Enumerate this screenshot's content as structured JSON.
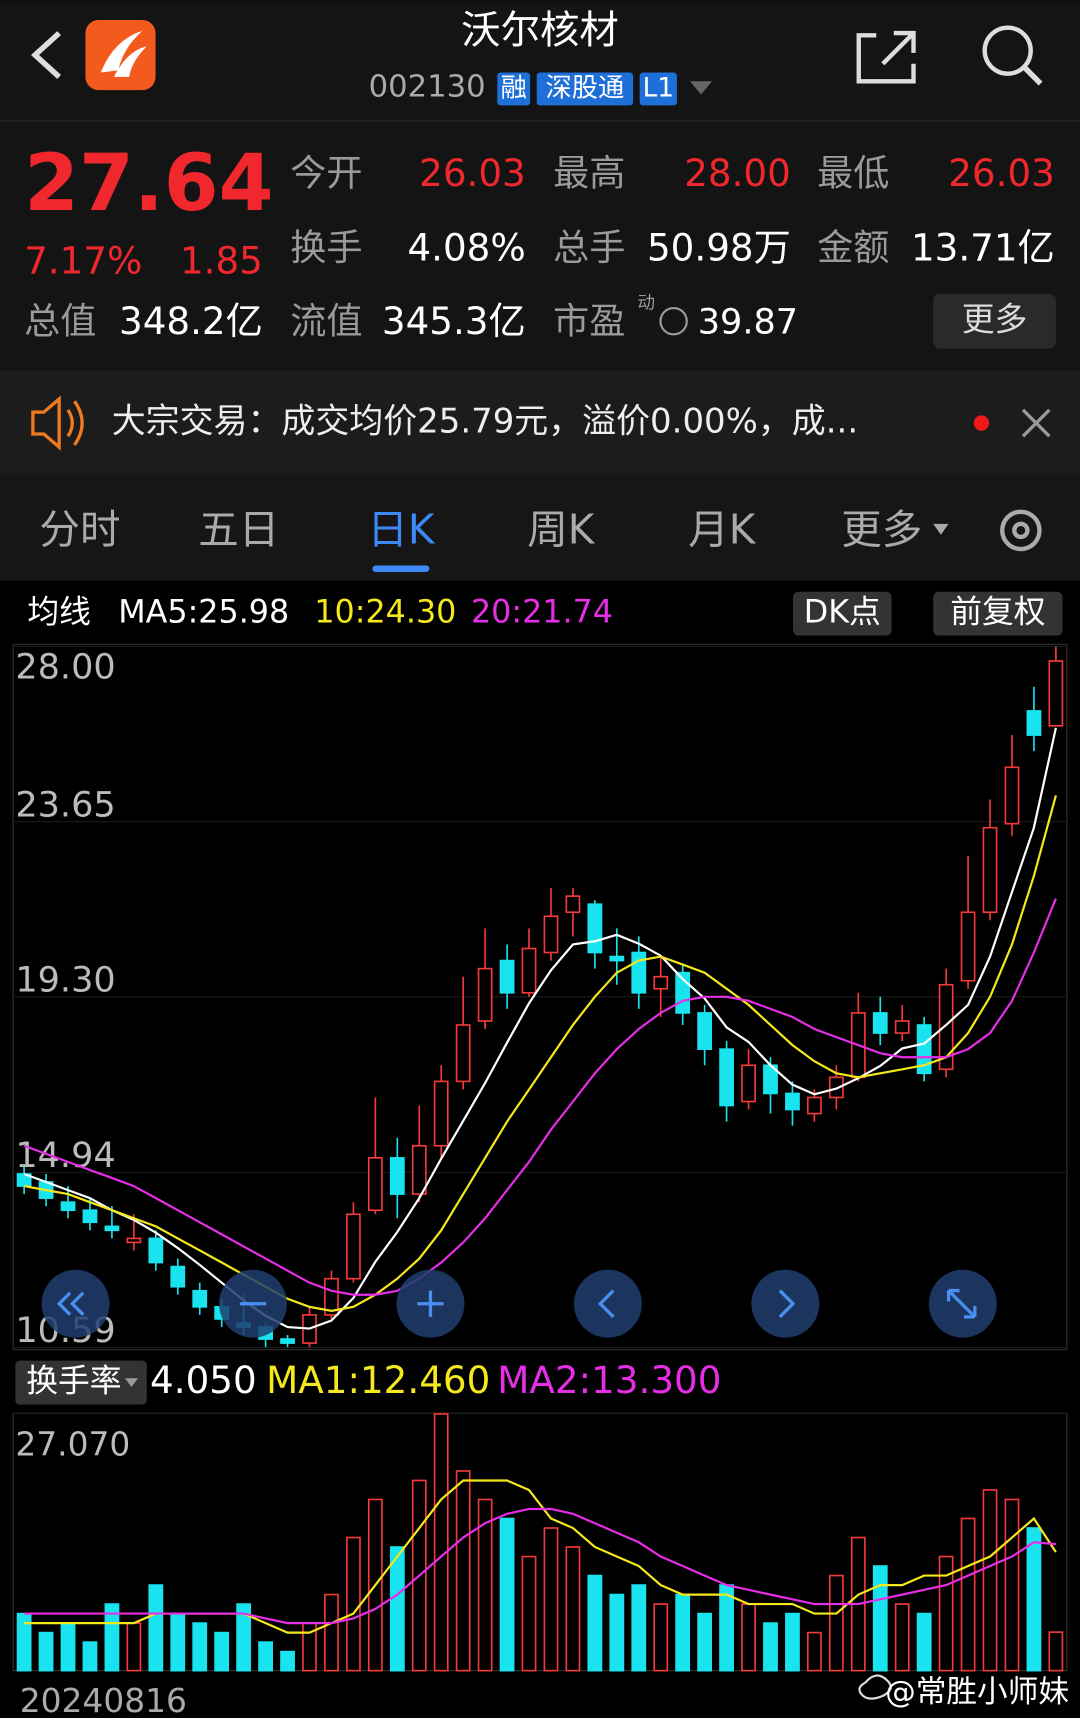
{
  "header": {
    "title": "沃尔核材",
    "code": "002130",
    "tags": [
      "融",
      "深股通",
      "L1"
    ]
  },
  "quote": {
    "price": "27.64",
    "change_pct": "7.17%",
    "change": "1.85",
    "fields": [
      [
        {
          "label": "今开",
          "value": "26.03"
        },
        {
          "label": "最高",
          "value": "28.00"
        },
        {
          "label": "最低",
          "value": "26.03"
        }
      ],
      [
        {
          "label": "换手",
          "value": "4.08%"
        },
        {
          "label": "总手",
          "value": "50.98万"
        },
        {
          "label": "金额",
          "value": "13.71亿"
        }
      ],
      [
        {
          "label": "总值",
          "value": "348.2亿"
        },
        {
          "label": "流值",
          "value": "345.3亿"
        },
        {
          "label": "市盈",
          "tag": "动",
          "value": "39.87"
        }
      ]
    ],
    "more": "更多"
  },
  "notice": "大宗交易：成交均价25.79元，溢价0.00%，成...",
  "tabs": [
    "分时",
    "五日",
    "日K",
    "周K",
    "月K",
    "更多"
  ],
  "active_tab": 2,
  "chart_data": [
    {
      "type": "candlestick",
      "legend_title": "均线",
      "buttons": [
        "DK点",
        "前复权"
      ],
      "ylim": [
        10.59,
        28
      ],
      "yticks": [
        {
          "value": 28,
          "label": "28.00"
        },
        23.65,
        {
          "value": 19.3,
          "label": "19.30"
        },
        14.94,
        10.59
      ],
      "up_color": "#f23a3a",
      "down_color": "#19e3ee",
      "open": [
        14.9,
        14.7,
        14.2,
        14.0,
        13.6,
        13.2,
        13.3,
        12.6,
        12.0,
        11.6,
        11.2,
        11.1,
        10.8,
        10.7,
        11.4,
        12.3,
        14.0,
        15.3,
        14.4,
        15.6,
        17.2,
        18.7,
        20.2,
        19.4,
        20.4,
        21.4,
        21.6,
        20.3,
        20.4,
        19.5,
        19.9,
        18.9,
        18.0,
        16.7,
        17.6,
        16.9,
        16.4,
        16.8,
        17.3,
        18.9,
        18.4,
        18.6,
        17.5,
        19.7,
        21.4,
        23.6,
        26.4,
        26.03
      ],
      "high": [
        15.1,
        14.9,
        14.6,
        14.3,
        14.1,
        13.9,
        13.5,
        12.8,
        12.2,
        11.8,
        11.9,
        11.2,
        10.9,
        11.6,
        12.5,
        14.2,
        16.8,
        15.8,
        16.6,
        17.6,
        19.8,
        21.0,
        20.6,
        21.0,
        22.0,
        22.0,
        21.7,
        21.0,
        20.8,
        20.3,
        20.1,
        19.1,
        18.2,
        18.0,
        17.8,
        17.2,
        17.0,
        17.6,
        19.4,
        19.3,
        19.1,
        18.8,
        20.0,
        22.8,
        24.2,
        25.8,
        27.0,
        28.0
      ],
      "low": [
        14.4,
        14.1,
        13.8,
        13.5,
        13.3,
        13.0,
        12.5,
        11.9,
        11.4,
        11.1,
        10.9,
        10.6,
        10.6,
        10.6,
        11.3,
        12.2,
        13.9,
        13.8,
        14.2,
        15.3,
        17.0,
        18.5,
        19.0,
        19.3,
        20.2,
        20.8,
        20.0,
        19.6,
        19.0,
        18.8,
        18.6,
        17.6,
        16.2,
        16.5,
        16.4,
        16.1,
        16.2,
        16.5,
        17.2,
        18.1,
        18.2,
        17.2,
        17.3,
        19.5,
        21.2,
        23.3,
        25.4,
        26.03
      ],
      "close": [
        14.6,
        14.3,
        14.0,
        13.7,
        13.5,
        13.3,
        12.7,
        12.1,
        11.6,
        11.3,
        11.1,
        10.8,
        10.7,
        11.4,
        12.3,
        13.9,
        15.3,
        14.4,
        15.6,
        17.2,
        18.6,
        20.0,
        19.4,
        20.5,
        21.3,
        21.8,
        20.4,
        20.2,
        19.4,
        19.8,
        18.9,
        18.0,
        16.6,
        17.6,
        16.9,
        16.5,
        16.8,
        17.3,
        18.9,
        18.4,
        18.7,
        17.4,
        19.6,
        21.4,
        23.5,
        25.0,
        25.8,
        27.64
      ],
      "series": [
        {
          "name": "MA5:25.98",
          "color": "#ffffff",
          "values": [
            14.9,
            14.7,
            14.5,
            14.3,
            14.0,
            13.76,
            13.44,
            13.06,
            12.64,
            12.2,
            11.76,
            11.38,
            11.1,
            11.06,
            11.26,
            11.82,
            12.72,
            13.46,
            14.3,
            15.28,
            16.22,
            17.16,
            18.16,
            19.14,
            19.96,
            20.6,
            20.68,
            20.84,
            20.62,
            20.32,
            19.74,
            19.26,
            18.54,
            18.18,
            17.6,
            17.12,
            16.88,
            17.02,
            17.28,
            17.58,
            18.02,
            18.14,
            18.6,
            19.1,
            20.3,
            21.9,
            23.5,
            25.98
          ]
        },
        {
          "name": "10:24.30",
          "color": "#f5e81c",
          "values": [
            14.6,
            14.5,
            14.4,
            14.2,
            14.0,
            13.8,
            13.6,
            13.3,
            13.0,
            12.7,
            12.4,
            12.1,
            11.8,
            11.6,
            11.5,
            11.6,
            11.9,
            12.3,
            12.8,
            13.5,
            14.4,
            15.3,
            16.2,
            17.0,
            17.8,
            18.6,
            19.3,
            19.9,
            20.2,
            20.3,
            20.1,
            19.9,
            19.5,
            19.1,
            18.6,
            18.1,
            17.7,
            17.4,
            17.3,
            17.4,
            17.5,
            17.6,
            17.8,
            18.4,
            19.3,
            20.6,
            22.3,
            24.3
          ]
        },
        {
          "name": "20:21.74",
          "color": "#e62ee6",
          "values": [
            15.6,
            15.4,
            15.2,
            15.0,
            14.8,
            14.6,
            14.3,
            14.0,
            13.7,
            13.4,
            13.1,
            12.8,
            12.5,
            12.2,
            12.0,
            11.9,
            11.9,
            12.0,
            12.3,
            12.7,
            13.2,
            13.8,
            14.5,
            15.2,
            16.0,
            16.7,
            17.4,
            18.0,
            18.5,
            18.9,
            19.2,
            19.3,
            19.3,
            19.2,
            19.0,
            18.8,
            18.5,
            18.3,
            18.1,
            17.9,
            17.8,
            17.8,
            17.8,
            18.0,
            18.4,
            19.2,
            20.4,
            21.74
          ]
        }
      ]
    },
    {
      "type": "bar",
      "title": "换手率",
      "current_label": "4.050",
      "categories": [
        "20240816",
        null,
        null,
        null,
        null,
        null,
        null,
        null,
        null,
        null,
        null,
        null,
        null,
        null,
        null,
        null,
        null,
        null,
        null,
        null,
        null,
        null,
        null,
        null,
        null,
        null,
        null,
        null,
        null,
        null,
        null,
        null,
        null,
        null,
        null,
        null,
        null,
        null,
        null,
        null,
        null,
        null,
        null,
        null,
        null,
        null,
        null,
        null
      ],
      "ylim": [
        0,
        27.07
      ],
      "yticks": [
        {
          "value": 27.07,
          "label": "27.070"
        }
      ],
      "values": [
        6,
        4,
        5,
        3,
        7,
        5,
        9,
        6,
        5,
        4,
        7,
        3,
        2,
        5,
        8,
        14,
        18,
        13,
        20,
        27,
        21,
        18,
        16,
        12,
        15,
        13,
        10,
        8,
        9,
        7,
        8,
        6,
        9,
        7,
        5,
        6,
        4,
        10,
        14,
        11,
        7,
        6,
        12,
        16,
        19,
        18,
        15,
        4.05
      ],
      "series": [
        {
          "name": "MA1:12.460",
          "color": "#f5e81c",
          "values": [
            5,
            5,
            5,
            5,
            5,
            5,
            6,
            6,
            6,
            6,
            6,
            5,
            4,
            4,
            5,
            6,
            9,
            12,
            15,
            18,
            20,
            20,
            20,
            19,
            16,
            15,
            13,
            12,
            11,
            9,
            8,
            8,
            8,
            7,
            7,
            7,
            6,
            6,
            8,
            9,
            9,
            10,
            10,
            11,
            12,
            14,
            16,
            12.46
          ]
        },
        {
          "name": "MA2:13.300",
          "color": "#e62ee6",
          "values": [
            6,
            6,
            6,
            6,
            6,
            6,
            6,
            6,
            6,
            6,
            6,
            5.5,
            5,
            5,
            5,
            5.5,
            6.5,
            8,
            10,
            12,
            14,
            15.5,
            16.5,
            17,
            17,
            16.5,
            15.5,
            14.5,
            13.5,
            12,
            11,
            10,
            9,
            8.5,
            8,
            7.5,
            7,
            7,
            7,
            7.5,
            8,
            8.5,
            9,
            10,
            11,
            12,
            13.5,
            13.3
          ]
        }
      ]
    }
  ],
  "watermark": "@常胜小师妹"
}
